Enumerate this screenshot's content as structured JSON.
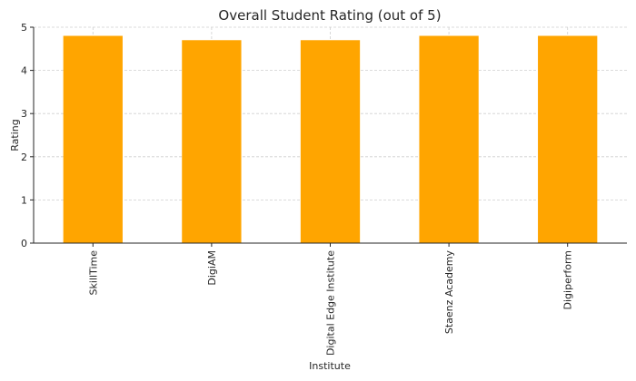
{
  "chart_data": {
    "type": "bar",
    "title": "Overall Student Rating (out of 5)",
    "xlabel": "Institute",
    "ylabel": "Rating",
    "categories": [
      "SkillTime",
      "DigiAM",
      "Digital Edge Institute",
      "Staenz Academy",
      "Digiperform"
    ],
    "values": [
      4.8,
      4.7,
      4.7,
      4.8,
      4.8
    ],
    "ylim": [
      0,
      5
    ],
    "yticks": [
      0,
      1,
      2,
      3,
      4,
      5
    ],
    "grid": true,
    "bar_color": "#FFA500"
  }
}
